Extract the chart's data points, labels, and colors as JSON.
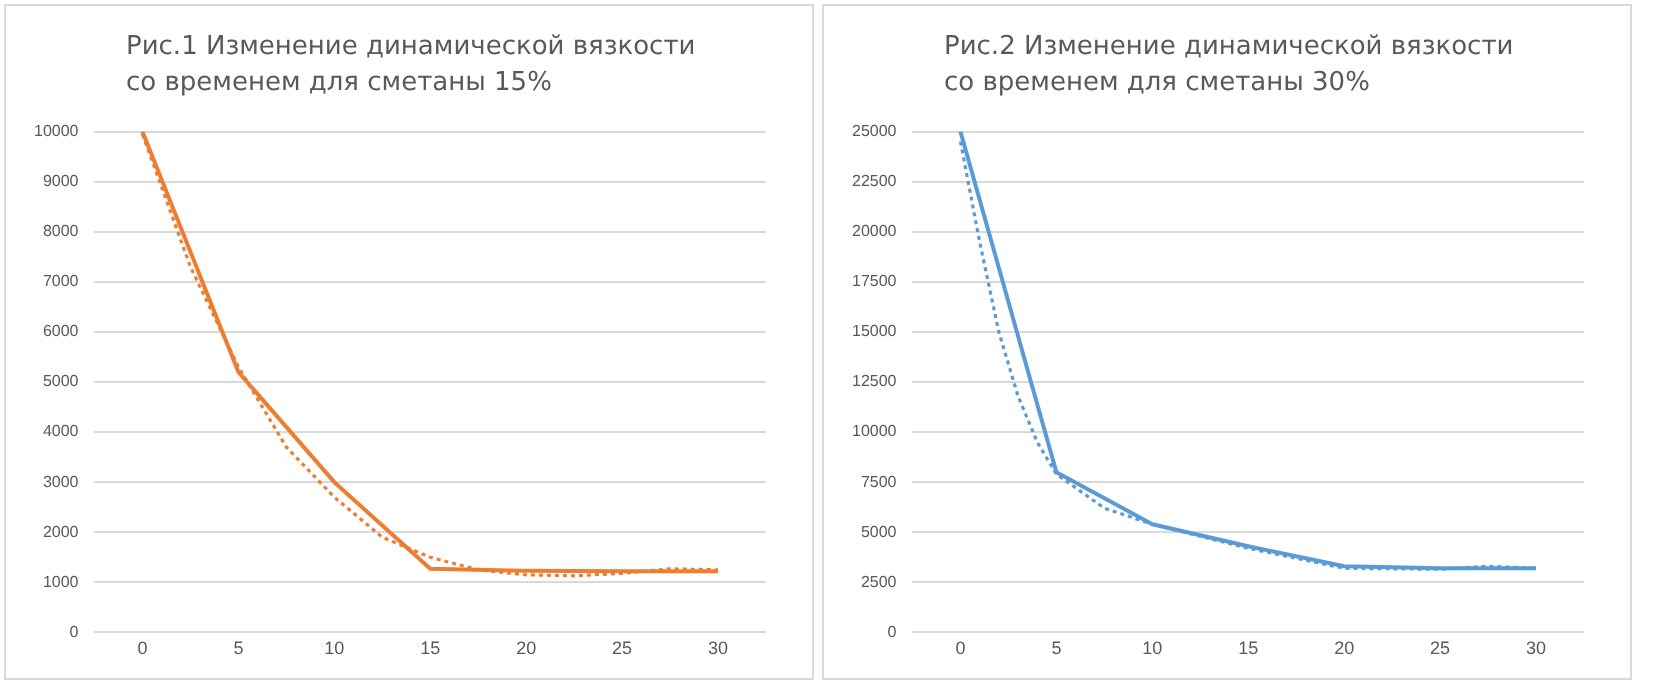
{
  "chart_data": [
    {
      "type": "line",
      "title": "Рис.1 Изменение динамической вязкости со временем для сметаны 15%",
      "x": [
        0,
        5,
        10,
        15,
        20,
        25,
        30
      ],
      "xlim": [
        -2.5,
        32.5
      ],
      "xticks": [
        0,
        5,
        10,
        15,
        20,
        25,
        30
      ],
      "ylim": [
        0,
        10000
      ],
      "yticks": [
        0,
        1000,
        2000,
        3000,
        4000,
        5000,
        6000,
        7000,
        8000,
        9000,
        10000
      ],
      "grid": "y",
      "legend": false,
      "marker": "none",
      "series": [
        {
          "color": "#ed7d31",
          "values": [
            10000,
            5200,
            3000,
            1270,
            1230,
            1220,
            1220
          ],
          "line_style": "solid"
        },
        {
          "color": "#ed7d31",
          "line_style": "dotted",
          "x": [
            0,
            2.5,
            5,
            7.5,
            10,
            12.5,
            15,
            17.5,
            20,
            22.5,
            25,
            27.5,
            30
          ],
          "values": [
            9950,
            7300,
            5300,
            3700,
            2700,
            1900,
            1500,
            1250,
            1150,
            1130,
            1180,
            1270,
            1250
          ]
        }
      ]
    },
    {
      "type": "line",
      "title": "Рис.2 Изменение динамической вязкости со временем для сметаны 30%",
      "x": [
        0,
        5,
        10,
        15,
        20,
        25,
        30
      ],
      "xlim": [
        -2.5,
        32.5
      ],
      "xticks": [
        0,
        5,
        10,
        15,
        20,
        25,
        30
      ],
      "ylim": [
        0,
        25000
      ],
      "yticks": [
        0,
        2500,
        5000,
        7500,
        10000,
        12500,
        15000,
        17500,
        20000,
        22500,
        25000
      ],
      "grid": "y",
      "legend": false,
      "marker": "none",
      "series": [
        {
          "color": "#5b9bd5",
          "values": [
            25000,
            8000,
            5400,
            4300,
            3300,
            3200,
            3200
          ],
          "line_style": "solid"
        },
        {
          "color": "#5b9bd5",
          "line_style": "dotted",
          "x": [
            0,
            1,
            2,
            3,
            4,
            5,
            7.5,
            10,
            15,
            20,
            25,
            27.5,
            30
          ],
          "values": [
            24500,
            19500,
            15000,
            11800,
            9500,
            7900,
            6200,
            5400,
            4200,
            3200,
            3150,
            3300,
            3200
          ]
        }
      ]
    }
  ]
}
